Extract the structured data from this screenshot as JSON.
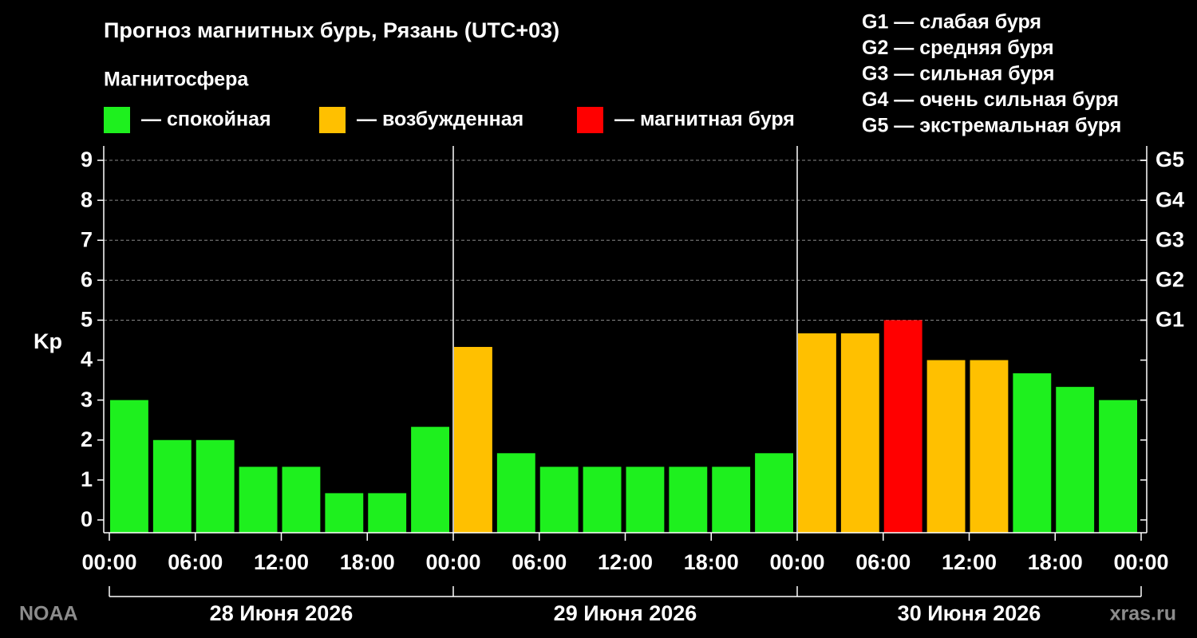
{
  "chart_data": {
    "type": "bar",
    "title": "Прогноз магнитных бурь, Рязань (UTC+03)",
    "legend_title": "Магнитосфера",
    "legend": [
      {
        "label": "— спокойная",
        "color": "#1ef01e"
      },
      {
        "label": "— возбужденная",
        "color": "#ffc000"
      },
      {
        "label": "— магнитная буря",
        "color": "#ff0000"
      }
    ],
    "scale_legend": [
      "G1 — слабая буря",
      "G2 — средняя буря",
      "G3 — сильная буря",
      "G4 — очень сильная буря",
      "G5 — экстремальная буря"
    ],
    "y_label": "Kp",
    "series": [
      {
        "values": [
          3,
          2,
          2,
          1.33,
          1.33,
          0.67,
          0.67,
          2.33,
          4.33,
          1.67,
          1.33,
          1.33,
          1.33,
          1.33,
          1.33,
          1.67,
          4.67,
          4.67,
          5,
          4,
          4,
          3.67,
          3.33,
          3
        ],
        "colors": [
          "#1ef01e",
          "#1ef01e",
          "#1ef01e",
          "#1ef01e",
          "#1ef01e",
          "#1ef01e",
          "#1ef01e",
          "#1ef01e",
          "#ffc000",
          "#1ef01e",
          "#1ef01e",
          "#1ef01e",
          "#1ef01e",
          "#1ef01e",
          "#1ef01e",
          "#1ef01e",
          "#ffc000",
          "#ffc000",
          "#ff0000",
          "#ffc000",
          "#ffc000",
          "#1ef01e",
          "#1ef01e",
          "#1ef01e"
        ]
      }
    ],
    "xlim": [
      0,
      72
    ],
    "xticks": [
      {
        "value": 0,
        "label": "00:00"
      },
      {
        "value": 6,
        "label": "06:00"
      },
      {
        "value": 12,
        "label": "12:00"
      },
      {
        "value": 18,
        "label": "18:00"
      },
      {
        "value": 24,
        "label": "00:00"
      },
      {
        "value": 30,
        "label": "06:00"
      },
      {
        "value": 36,
        "label": "12:00"
      },
      {
        "value": 42,
        "label": "18:00"
      },
      {
        "value": 48,
        "label": "00:00"
      },
      {
        "value": 54,
        "label": "06:00"
      },
      {
        "value": 60,
        "label": "12:00"
      },
      {
        "value": 66,
        "label": "18:00"
      },
      {
        "value": 72,
        "label": "00:00"
      }
    ],
    "days": [
      "28 Июня 2026",
      "29 Июня 2026",
      "30 Июня 2026"
    ],
    "ylim": [
      -0.32,
      9.36
    ],
    "yticks": [
      0,
      1,
      2,
      3,
      4,
      5,
      6,
      7,
      8,
      9
    ],
    "y2lim": [
      -0.32,
      9.36
    ],
    "y2ticks": [
      {
        "value": 5,
        "label": "G1"
      },
      {
        "value": 6,
        "label": "G2"
      },
      {
        "value": 7,
        "label": "G3"
      },
      {
        "value": 8,
        "label": "G4"
      },
      {
        "value": 9,
        "label": "G5"
      }
    ],
    "grid": true,
    "source": "NOAA",
    "site": "xras.ru"
  }
}
